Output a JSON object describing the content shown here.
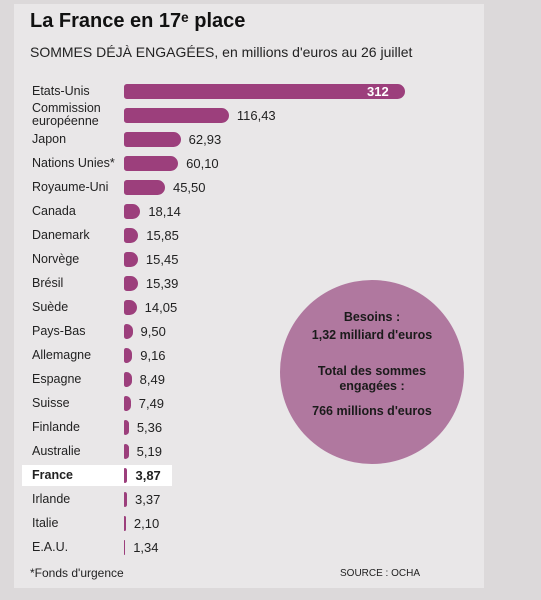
{
  "chart_data": {
    "type": "hbar",
    "title": "La France en 17ᵉ place",
    "subtitle": "SOMMES DÉJÀ ENGAGÉES, en millions d'euros au 26 juillet",
    "categories": [
      "Etats-Unis",
      "Commission européenne",
      "Japon",
      "Nations Unies*",
      "Royaume-Uni",
      "Canada",
      "Danemark",
      "Norvège",
      "Brésil",
      "Suède",
      "Pays-Bas",
      "Allemagne",
      "Espagne",
      "Suisse",
      "Finlande",
      "Australie",
      "France",
      "Irlande",
      "Italie",
      "E.A.U."
    ],
    "values": [
      312,
      116.43,
      62.93,
      60.1,
      45.5,
      18.14,
      15.85,
      15.45,
      15.39,
      14.05,
      9.5,
      9.16,
      8.49,
      7.49,
      5.36,
      5.19,
      3.87,
      3.37,
      2.1,
      1.34
    ],
    "value_labels": [
      "312",
      "116,43",
      "62,93",
      "60,10",
      "45,50",
      "18,14",
      "15,85",
      "15,45",
      "15,39",
      "14,05",
      "9,50",
      "9,16",
      "8,49",
      "7,49",
      "5,36",
      "5,19",
      "3,87",
      "3,37",
      "2,10",
      "1,34"
    ],
    "color": "#9c3f7c",
    "highlight_index": 16,
    "annotations": {
      "needs_label": "Besoins :",
      "needs_value": "1,32 milliard d'euros",
      "total_label": "Total des sommes engagées :",
      "total_value": "766 millions d'euros"
    },
    "footnote": "*Fonds d'urgence",
    "source": "SOURCE : OCHA"
  }
}
